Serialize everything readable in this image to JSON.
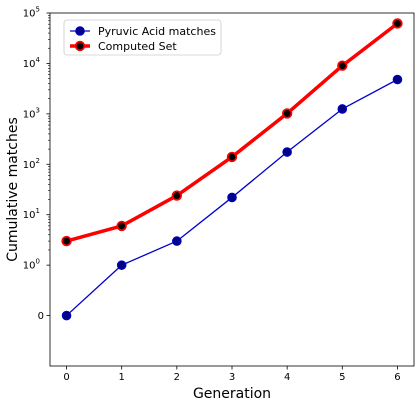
{
  "chart_data": {
    "type": "line",
    "xlabel": "Generation",
    "ylabel": "Cumulative matches",
    "xlim": [
      -0.3,
      6.3
    ],
    "x": [
      0,
      1,
      2,
      3,
      4,
      5,
      6
    ],
    "x_ticks": [
      "0",
      "1",
      "2",
      "3",
      "4",
      "5",
      "6"
    ],
    "y_scale": "symlog",
    "ylim": [
      -1,
      100000
    ],
    "y_ticks": [
      {
        "value": 0,
        "label": "0",
        "sup": ""
      },
      {
        "value": 1,
        "label": "10",
        "sup": "0"
      },
      {
        "value": 10,
        "label": "10",
        "sup": "1"
      },
      {
        "value": 100,
        "label": "10",
        "sup": "2"
      },
      {
        "value": 1000,
        "label": "10",
        "sup": "3"
      },
      {
        "value": 10000,
        "label": "10",
        "sup": "4"
      },
      {
        "value": 100000,
        "label": "10",
        "sup": "5"
      }
    ],
    "grid": false,
    "legend_position": "top-left",
    "series": [
      {
        "name": "Pyruvic Acid matches",
        "values": [
          0,
          1,
          3,
          22,
          175,
          1250,
          4800
        ],
        "color": "#0000cc",
        "marker_face": "#00008b",
        "line": "thin"
      },
      {
        "name": "Computed Set",
        "values": [
          3,
          6,
          24,
          140,
          1020,
          9000,
          62000
        ],
        "color": "#ff0000",
        "marker_face": "#000000",
        "line": "thick"
      }
    ]
  }
}
